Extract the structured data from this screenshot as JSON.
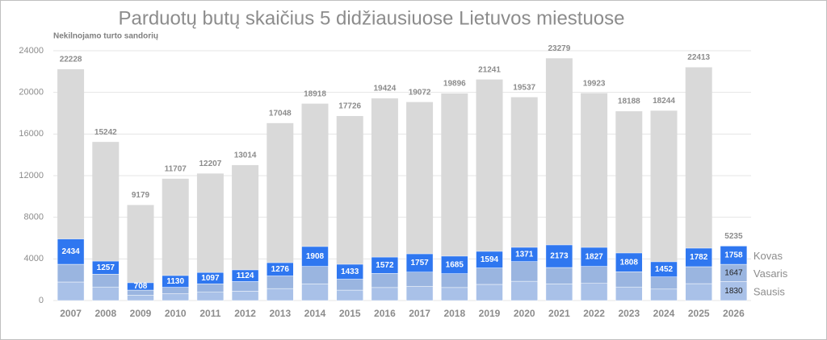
{
  "chart_data": {
    "type": "bar",
    "title": "Parduotų butų skaičius 5 didžiausiuose Lietuvos miestuose",
    "y_label": "Nekilnojamo turto sandorių",
    "categories": [
      "2007",
      "2008",
      "2009",
      "2010",
      "2011",
      "2012",
      "2013",
      "2014",
      "2015",
      "2016",
      "2017",
      "2018",
      "2019",
      "2020",
      "2021",
      "2022",
      "2023",
      "2024",
      "2025",
      "2026"
    ],
    "totals": [
      22228,
      15242,
      9179,
      11707,
      12207,
      13014,
      17048,
      18918,
      17726,
      19424,
      19072,
      19896,
      21241,
      19537,
      23279,
      19923,
      18188,
      18244,
      22413,
      5235
    ],
    "totals_color": "#d9d9d9",
    "series": [
      {
        "name": "Sausis",
        "color": "#a9c1e8",
        "labels": "last",
        "label_color": "#222222",
        "values": [
          1780,
          1300,
          500,
          650,
          800,
          900,
          1150,
          1600,
          1000,
          1250,
          1350,
          1250,
          1550,
          1850,
          1600,
          1650,
          1300,
          1100,
          1620,
          1830
        ]
      },
      {
        "name": "Vasaris",
        "color": "#9ab5e0",
        "labels": "last",
        "label_color": "#222222",
        "values": [
          1700,
          1230,
          500,
          620,
          800,
          920,
          1210,
          1680,
          1050,
          1350,
          1380,
          1330,
          1580,
          1890,
          1570,
          1630,
          1460,
          1170,
          1630,
          1647
        ]
      },
      {
        "name": "Kovas",
        "color": "#2f77f0",
        "labels": "all",
        "label_color": "#ffffff",
        "values": [
          2434,
          1257,
          708,
          1130,
          1097,
          1124,
          1276,
          1908,
          1433,
          1572,
          1757,
          1685,
          1594,
          1371,
          2173,
          1827,
          1808,
          1452,
          1782,
          1758
        ]
      }
    ],
    "ylim": [
      0,
      24000
    ],
    "yticks": [
      0,
      4000,
      8000,
      12000,
      16000,
      20000,
      24000
    ],
    "grid": true
  }
}
